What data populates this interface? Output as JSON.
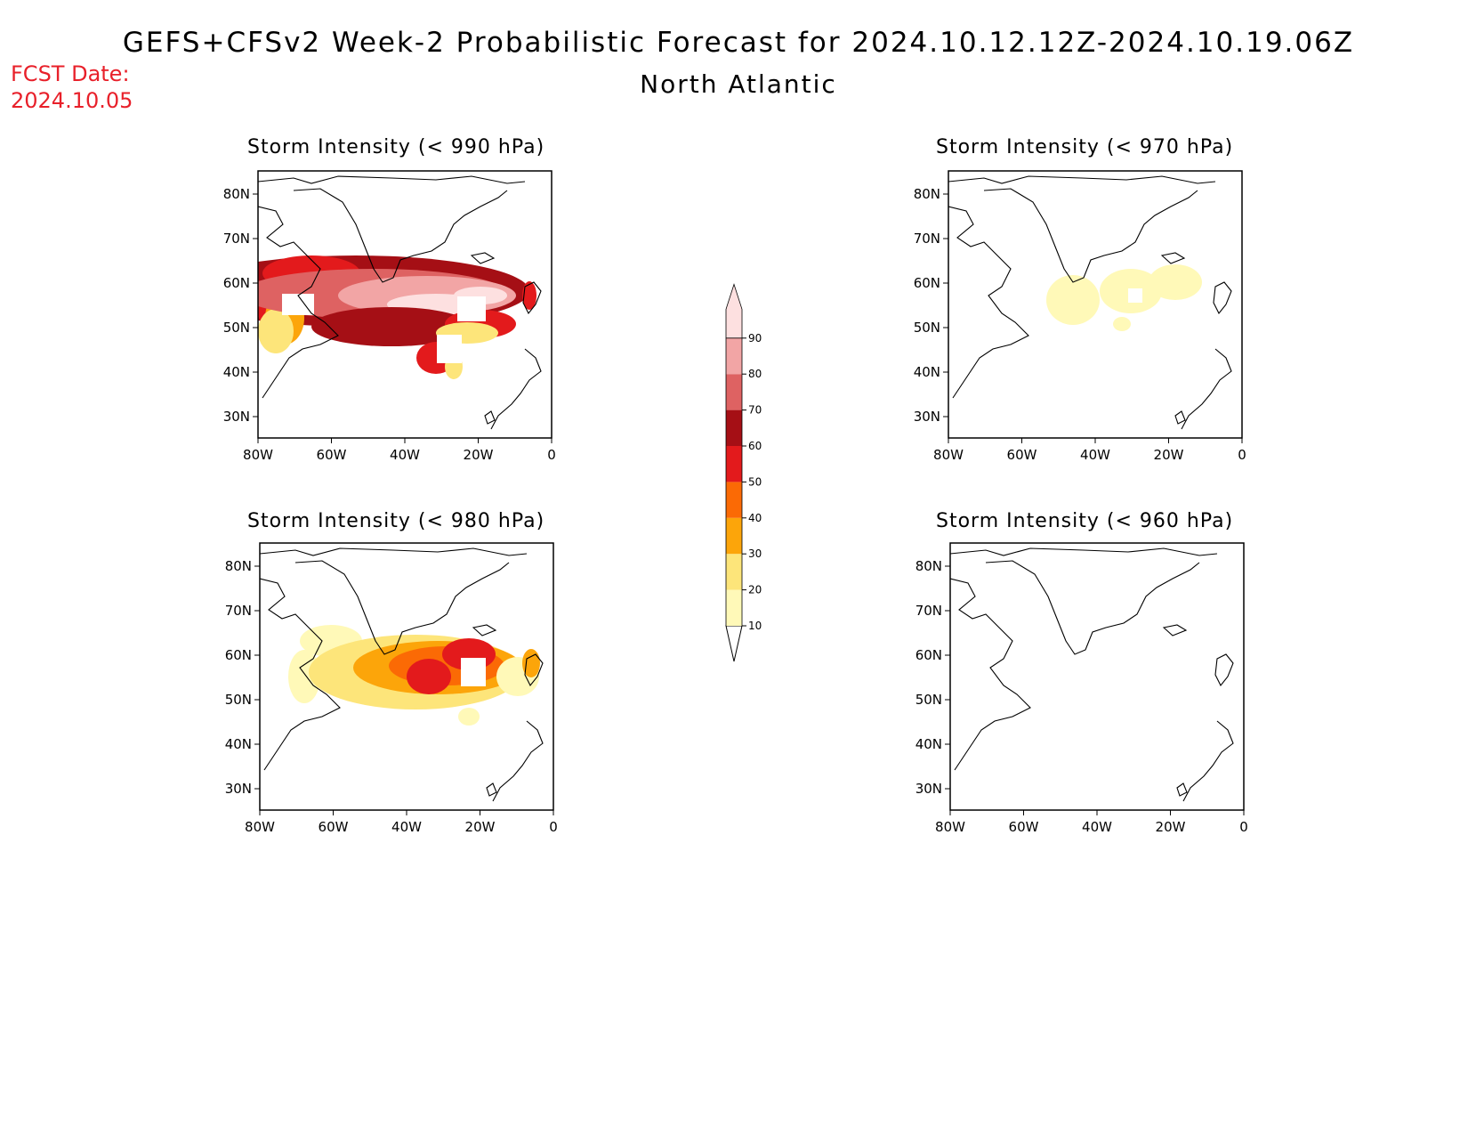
{
  "header": {
    "title": "GEFS+CFSv2 Week-2 Probabilistic Forecast for 2024.10.12.12Z-2024.10.19.06Z",
    "region": "North Atlantic",
    "fcst_label": "FCST Date:",
    "fcst_date": "2024.10.05"
  },
  "panels": [
    {
      "title": "Storm Intensity (< 990 hPa)"
    },
    {
      "title": "Storm Intensity (< 970 hPa)"
    },
    {
      "title": "Storm Intensity (< 980 hPa)"
    },
    {
      "title": "Storm Intensity (< 960 hPa)"
    }
  ],
  "axes": {
    "lat_labels": [
      "80N",
      "70N",
      "60N",
      "50N",
      "40N",
      "30N"
    ],
    "lon_labels": [
      "80W",
      "60W",
      "40W",
      "20W",
      "0"
    ]
  },
  "colorbar": {
    "labels": [
      "10",
      "20",
      "30",
      "40",
      "50",
      "60",
      "70",
      "80",
      "90"
    ],
    "colors": [
      "#fff9b8",
      "#fde57a",
      "#fca50a",
      "#fb6a05",
      "#e31a1c",
      "#a50f15",
      "#de6262",
      "#f2a5a5",
      "#fde0e0"
    ]
  }
}
